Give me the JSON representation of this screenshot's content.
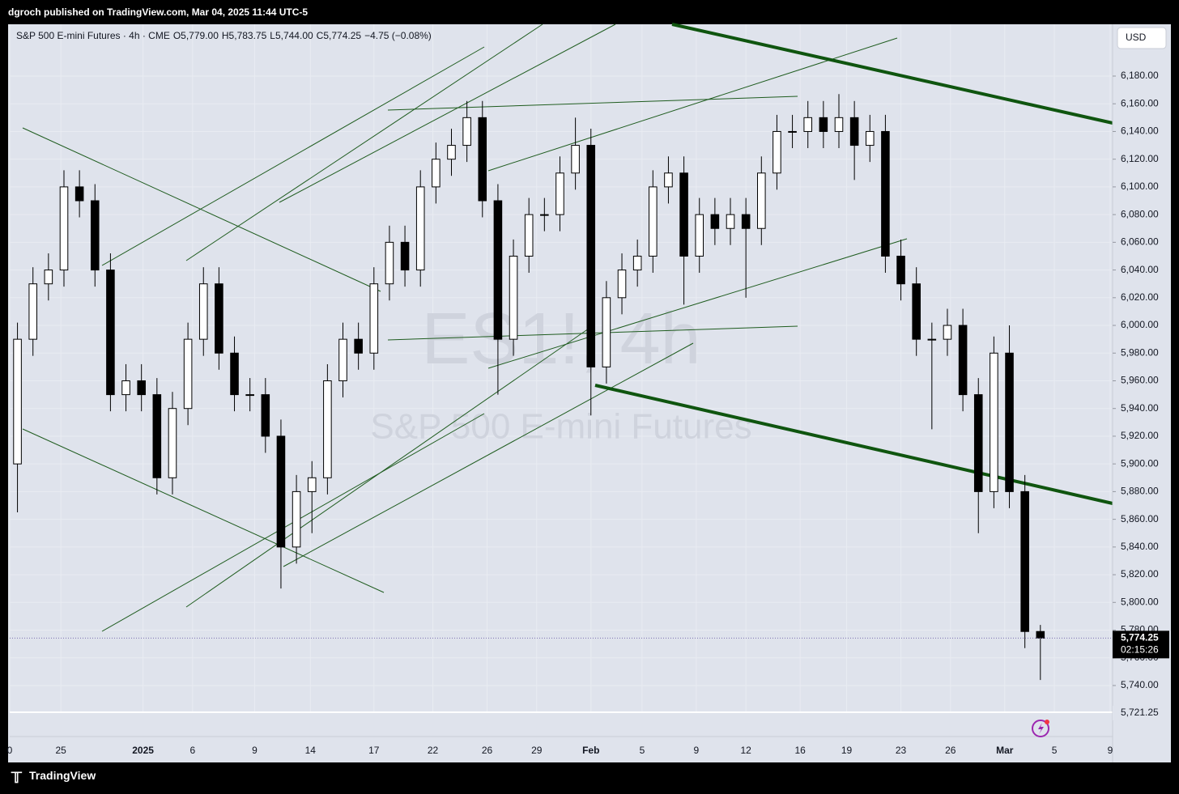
{
  "header": {
    "published": "dgroch published on TradingView.com, Mar 04, 2025 11:44 UTC-5"
  },
  "footer": {
    "brand": "TradingView"
  },
  "chart_data": {
    "type": "candlestick",
    "symbol": "S&P 500 E-mini Futures · 4h · CME",
    "ohlc_labels": [
      "O5,779.00",
      "H5,783.75",
      "L5,744.00",
      "C5,774.25",
      "−4.75 (−0.08%)"
    ],
    "watermark": [
      "ES1!, 4h",
      "S&P 500 E-mini Futures"
    ],
    "currency": "USD",
    "last_price_label": "5,774.25",
    "countdown": "02:15:26",
    "bottom_price_label": "5,721.25",
    "up_color": "#ffffff",
    "down_color": "#000000",
    "wick_color": "#000000",
    "grid": true,
    "ylim": [
      5720.7,
      6217.4
    ],
    "xlim": [
      -0.5,
      70.66
    ],
    "yticks": [
      {
        "value": 5740,
        "label": "5,740.00"
      },
      {
        "value": 5760,
        "label": "5,760.00"
      },
      {
        "value": 5780,
        "label": "5,780.00"
      },
      {
        "value": 5800,
        "label": "5,800.00"
      },
      {
        "value": 5820,
        "label": "5,820.00"
      },
      {
        "value": 5840,
        "label": "5,840.00"
      },
      {
        "value": 5860,
        "label": "5,860.00"
      },
      {
        "value": 5880,
        "label": "5,880.00"
      },
      {
        "value": 5900,
        "label": "5,900.00"
      },
      {
        "value": 5920,
        "label": "5,920.00"
      },
      {
        "value": 5940,
        "label": "5,940.00"
      },
      {
        "value": 5960,
        "label": "5,960.00"
      },
      {
        "value": 5980,
        "label": "5,980.00"
      },
      {
        "value": 6000,
        "label": "6,000.00"
      },
      {
        "value": 6020,
        "label": "6,020.00"
      },
      {
        "value": 6040,
        "label": "6,040.00"
      },
      {
        "value": 6060,
        "label": "6,060.00"
      },
      {
        "value": 6080,
        "label": "6,080.00"
      },
      {
        "value": 6100,
        "label": "6,100.00"
      },
      {
        "value": 6120,
        "label": "6,120.00"
      },
      {
        "value": 6140,
        "label": "6,140.00"
      },
      {
        "value": 6160,
        "label": "6,160.00"
      },
      {
        "value": 6180,
        "label": "6,180.00"
      }
    ],
    "xticks": [
      {
        "value": -0.5,
        "label": "0"
      },
      {
        "value": 2.8,
        "label": "25"
      },
      {
        "value": 8.1,
        "label": "2025"
      },
      {
        "value": 11.3,
        "label": "6"
      },
      {
        "value": 15.3,
        "label": "9"
      },
      {
        "value": 18.9,
        "label": "14"
      },
      {
        "value": 23.0,
        "label": "17"
      },
      {
        "value": 26.8,
        "label": "22"
      },
      {
        "value": 30.3,
        "label": "26"
      },
      {
        "value": 33.5,
        "label": "29"
      },
      {
        "value": 37.0,
        "label": "Feb"
      },
      {
        "value": 40.3,
        "label": "5"
      },
      {
        "value": 43.8,
        "label": "9"
      },
      {
        "value": 47.0,
        "label": "12"
      },
      {
        "value": 50.5,
        "label": "16"
      },
      {
        "value": 53.5,
        "label": "19"
      },
      {
        "value": 57.0,
        "label": "23"
      },
      {
        "value": 60.2,
        "label": "26"
      },
      {
        "value": 63.7,
        "label": "Mar"
      },
      {
        "value": 66.9,
        "label": "5"
      },
      {
        "value": 70.5,
        "label": "9"
      }
    ],
    "open": [
      5900,
      5990,
      6030,
      6040,
      6100,
      6090,
      6040,
      5950,
      5960,
      5950,
      5890,
      5940,
      5990,
      6030,
      5980,
      5950,
      5950,
      5920,
      5840,
      5880,
      5890,
      5960,
      5990,
      5980,
      6030,
      6060,
      6040,
      6100,
      6120,
      6130,
      6150,
      6090,
      5990,
      6050,
      6080,
      6080,
      6110,
      6130,
      5970,
      6020,
      6040,
      6050,
      6100,
      6110,
      6050,
      6080,
      6070,
      6080,
      6070,
      6110,
      6140,
      6140,
      6150,
      6140,
      6150,
      6130,
      6140,
      6050,
      6030,
      5990,
      5990,
      6000,
      5950,
      5880,
      5980,
      5880,
      5779
    ],
    "high": [
      6002,
      6042,
      6052,
      6112,
      6112,
      6102,
      6052,
      5972,
      5972,
      5962,
      5952,
      6002,
      6042,
      6042,
      5992,
      5962,
      5962,
      5932,
      5892,
      5902,
      5972,
      6002,
      6002,
      6042,
      6072,
      6072,
      6112,
      6132,
      6142,
      6162,
      6162,
      6102,
      6062,
      6092,
      6092,
      6122,
      6150,
      6142,
      6032,
      6052,
      6062,
      6112,
      6122,
      6122,
      6092,
      6092,
      6092,
      6092,
      6122,
      6152,
      6152,
      6162,
      6162,
      6167,
      6162,
      6152,
      6152,
      6062,
      6042,
      6002,
      6012,
      6012,
      5962,
      5992,
      6000,
      5892,
      5783.75
    ],
    "low": [
      5865,
      5978,
      6018,
      6028,
      6078,
      6028,
      5938,
      5938,
      5938,
      5878,
      5878,
      5928,
      5978,
      5968,
      5938,
      5938,
      5908,
      5810,
      5828,
      5850,
      5878,
      5948,
      5968,
      5968,
      6018,
      6028,
      6028,
      6088,
      6108,
      6118,
      6078,
      5950,
      5978,
      6038,
      6068,
      6068,
      6098,
      5935,
      5958,
      6008,
      6028,
      6038,
      6088,
      6015,
      6038,
      6058,
      6058,
      6020,
      6058,
      6098,
      6128,
      6128,
      6128,
      6128,
      6105,
      6118,
      6038,
      6018,
      5978,
      5925,
      5978,
      5938,
      5850,
      5868,
      5868,
      5767,
      5744
    ],
    "close": [
      5990,
      6030,
      6040,
      6100,
      6090,
      6040,
      5950,
      5960,
      5950,
      5890,
      5940,
      5990,
      6030,
      5980,
      5950,
      5950,
      5920,
      5840,
      5880,
      5890,
      5960,
      5990,
      5980,
      6030,
      6060,
      6040,
      6100,
      6120,
      6130,
      6150,
      6090,
      5990,
      6050,
      6080,
      6080,
      6110,
      6130,
      5970,
      6020,
      6040,
      6050,
      6100,
      6110,
      6050,
      6080,
      6070,
      6080,
      6070,
      6110,
      6140,
      6140,
      6150,
      6140,
      6150,
      6130,
      6140,
      6050,
      6030,
      5990,
      5990,
      6000,
      5950,
      5880,
      5980,
      5880,
      5779,
      5774.25
    ]
  }
}
